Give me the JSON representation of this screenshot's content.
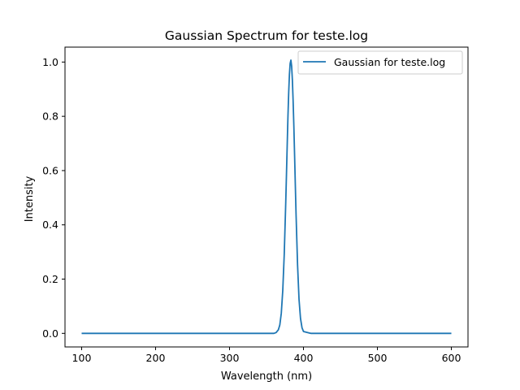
{
  "chart_data": {
    "type": "line",
    "title": "Gaussian Spectrum for teste.log",
    "xlabel": "Wavelength (nm)",
    "ylabel": "Intensity",
    "xlim": [
      77.5,
      622.5
    ],
    "ylim": [
      -0.05,
      1.055
    ],
    "x_ticks": [
      100,
      200,
      300,
      400,
      500,
      600
    ],
    "y_ticks": [
      0.0,
      0.2,
      0.4,
      0.6,
      0.8,
      1.0
    ],
    "x_tick_labels": [
      "100",
      "200",
      "300",
      "400",
      "500",
      "600"
    ],
    "y_tick_labels": [
      "0.0",
      "0.2",
      "0.4",
      "0.6",
      "0.8",
      "1.0"
    ],
    "grid": false,
    "legend_position": "upper right",
    "series": [
      {
        "name": "Gaussian for teste.log",
        "color": "#1f77b4",
        "x": [
          100,
          200,
          300,
          340,
          350,
          360,
          363,
          366,
          368,
          370,
          372,
          374,
          376,
          377,
          378,
          379,
          380,
          381,
          382,
          383,
          384,
          385,
          386,
          387,
          388,
          389,
          390,
          392,
          394,
          396,
          398,
          400,
          410,
          450,
          500,
          600
        ],
        "y": [
          0.0,
          0.0,
          0.0,
          0.0,
          0.0,
          0.0,
          0.003,
          0.013,
          0.031,
          0.074,
          0.158,
          0.292,
          0.479,
          0.585,
          0.693,
          0.798,
          0.886,
          0.954,
          0.995,
          1.007,
          0.985,
          0.934,
          0.857,
          0.763,
          0.656,
          0.545,
          0.437,
          0.253,
          0.125,
          0.055,
          0.021,
          0.007,
          0.0,
          0.0,
          0.0,
          0.0
        ]
      }
    ]
  }
}
